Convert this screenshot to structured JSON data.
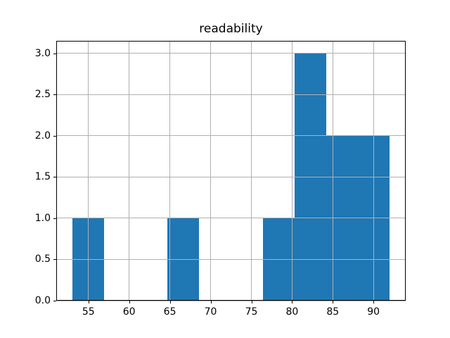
{
  "chart_data": {
    "type": "histogram",
    "title": "readability",
    "bin_edges": [
      53.0,
      56.9,
      60.8,
      64.7,
      68.6,
      72.5,
      76.4,
      80.3,
      84.2,
      88.1,
      92.0
    ],
    "counts": [
      1,
      0,
      0,
      1,
      0,
      0,
      1,
      3,
      2,
      2
    ],
    "xlim": [
      51.05,
      93.95
    ],
    "ylim": [
      0,
      3.15
    ],
    "xticks": [
      55,
      60,
      65,
      70,
      75,
      80,
      85,
      90
    ],
    "xtick_labels": [
      "55",
      "60",
      "65",
      "70",
      "75",
      "80",
      "85",
      "90"
    ],
    "yticks": [
      0.0,
      0.5,
      1.0,
      1.5,
      2.0,
      2.5,
      3.0
    ],
    "ytick_labels": [
      "0.0",
      "0.5",
      "1.0",
      "1.5",
      "2.0",
      "2.5",
      "3.0"
    ],
    "xlabel": "",
    "ylabel": "",
    "grid": true,
    "grid_above_bars": true,
    "legend_position": "none",
    "colors": {
      "bar": "#1f77b4",
      "grid": "#b0b0b0",
      "axes": "#000000",
      "background": "#ffffff",
      "text": "#000000"
    }
  }
}
